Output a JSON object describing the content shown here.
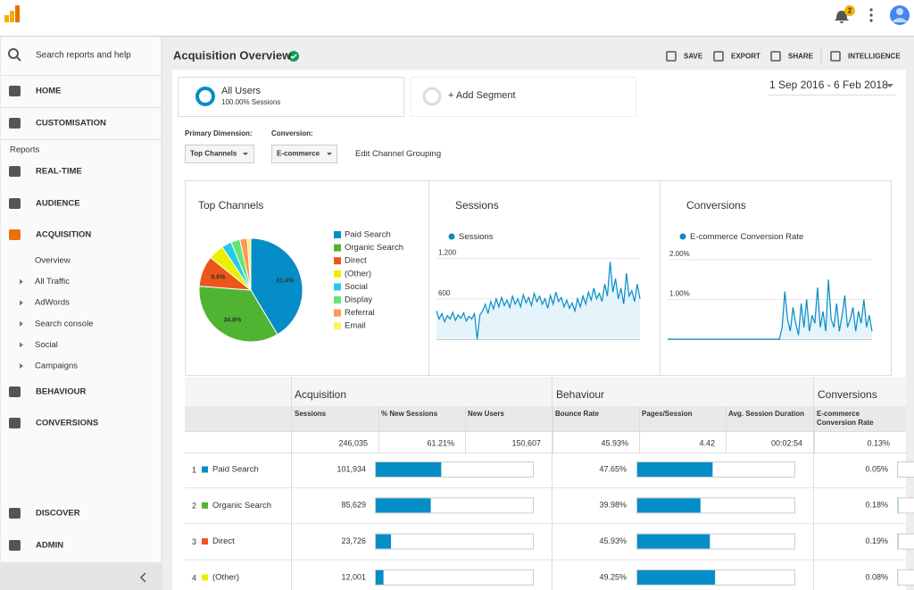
{
  "topbar": {
    "notification_count": "2"
  },
  "sidebar": {
    "search": "Search reports and help",
    "top_items": [
      "HOME",
      "CUSTOMISATION"
    ],
    "section": "Reports",
    "items": [
      "REAL-TIME",
      "AUDIENCE",
      "ACQUISITION"
    ],
    "sub_items": [
      "Overview",
      "All Traffic",
      "AdWords",
      "Search console",
      "Social",
      "Campaigns"
    ],
    "items2": [
      "BEHAVIOUR",
      "CONVERSIONS"
    ],
    "bottom_items": [
      "DISCOVER",
      "ADMIN"
    ]
  },
  "header": {
    "title": "Acquisition Overview",
    "actions": [
      "SAVE",
      "EXPORT",
      "SHARE",
      "INTELLIGENCE"
    ]
  },
  "segments": {
    "active": {
      "name": "All Users",
      "detail": "100.00% Sessions"
    },
    "add": "+ Add Segment"
  },
  "date_range": "1 Sep 2016 - 6 Feb 2018",
  "controls": {
    "primary_label": "Primary Dimension:",
    "primary_value": "Top Channels",
    "conversion_label": "Conversion:",
    "conversion_value": "E-commerce",
    "link": "Edit Channel Grouping"
  },
  "charts": [
    {
      "type": "pie",
      "title": "Top Channels",
      "categories": [
        "Paid Search",
        "Organic Search",
        "Direct",
        "(Other)",
        "Social",
        "Display",
        "Referral",
        "Email"
      ],
      "values": [
        41.4,
        34.8,
        9.6,
        4.9,
        3.1,
        2.8,
        2.3,
        1.1
      ],
      "value_labels": [
        "41.4%",
        "34.8%",
        "9.6%",
        null,
        null,
        null,
        null,
        null
      ],
      "colors": [
        "#058dc7",
        "#50b432",
        "#ed561b",
        "#edef00",
        "#24cbe5",
        "#64e572",
        "#ff9655",
        "#fff263"
      ]
    },
    {
      "type": "line",
      "title": "Sessions",
      "series": [
        {
          "name": "Sessions",
          "color": "#058dc7",
          "values": [
            420,
            300,
            380,
            260,
            350,
            300,
            400,
            280,
            360,
            310,
            390,
            270,
            340,
            300,
            380,
            0,
            360,
            420,
            520,
            380,
            560,
            450,
            600,
            480,
            620,
            500,
            580,
            470,
            640,
            520,
            600,
            480,
            660,
            540,
            620,
            500,
            680,
            560,
            640,
            520,
            600,
            460,
            650,
            520,
            700,
            560,
            620,
            480,
            580,
            460,
            540,
            420,
            600,
            480,
            640,
            520,
            700,
            580,
            760,
            600,
            680,
            560,
            820,
            640,
            1150,
            700,
            900,
            600,
            760,
            520,
            980,
            640,
            720,
            560,
            820,
            600
          ]
        }
      ],
      "ylim": [
        0,
        1300
      ],
      "yticks": [
        {
          "value": 1200,
          "label": "1,200"
        },
        600
      ],
      "grid": true
    },
    {
      "type": "line",
      "title": "Conversions",
      "series": [
        {
          "name": "E-commerce Conversion Rate",
          "color": "#058dc7",
          "values": [
            0,
            0,
            0,
            0,
            0,
            0,
            0,
            0,
            0,
            0,
            0,
            0,
            0,
            0,
            0,
            0,
            0,
            0,
            0,
            0,
            0,
            0,
            0,
            0,
            0,
            0,
            0,
            0,
            0,
            0,
            0,
            0,
            0,
            0,
            0,
            0,
            0,
            0,
            0,
            0,
            0,
            0,
            0.3,
            1.2,
            0.5,
            0.2,
            0.8,
            0.4,
            0.1,
            0.9,
            0.3,
            1.0,
            0.2,
            0.6,
            0.4,
            1.3,
            0.3,
            0.7,
            0.2,
            1.5,
            0.5,
            0.3,
            0.9,
            0.2,
            0.6,
            1.1,
            0.3,
            0.5,
            0.8,
            0.2,
            0.7,
            0.4,
            1.0,
            0.3,
            0.6,
            0.2
          ]
        }
      ],
      "ylim": [
        0,
        2.2
      ],
      "yticks": [
        {
          "value": 2,
          "label": "2.00%"
        },
        {
          "value": 1,
          "label": "1.00%"
        }
      ],
      "grid": true
    }
  ],
  "table": {
    "groups": [
      "Acquisition",
      "Behaviour",
      "Conversions"
    ],
    "columns": [
      "Sessions",
      "% New Sessions",
      "New Users",
      "Bounce Rate",
      "Pages/Session",
      "Avg. Session Duration",
      "E-commerce Conversion Rate"
    ],
    "totals": [
      "246,035",
      "61.21%",
      "150,607",
      "45.93%",
      "4.42",
      "00:02:54",
      "0.13%"
    ],
    "rows": [
      {
        "index": "1",
        "channel": "Paid Search",
        "values": [
          "101,934",
          "47.65%",
          "0.05%"
        ]
      },
      {
        "index": "2",
        "channel": "Organic Search",
        "values": [
          "85,629",
          "39.98%",
          "0.18%"
        ]
      },
      {
        "index": "3",
        "channel": "Direct",
        "values": [
          "23,726",
          "45.93%",
          "0.19%"
        ]
      },
      {
        "index": "4",
        "channel": "(Other)",
        "values": [
          "12,001",
          "49.25%",
          "0.08%"
        ]
      }
    ]
  }
}
